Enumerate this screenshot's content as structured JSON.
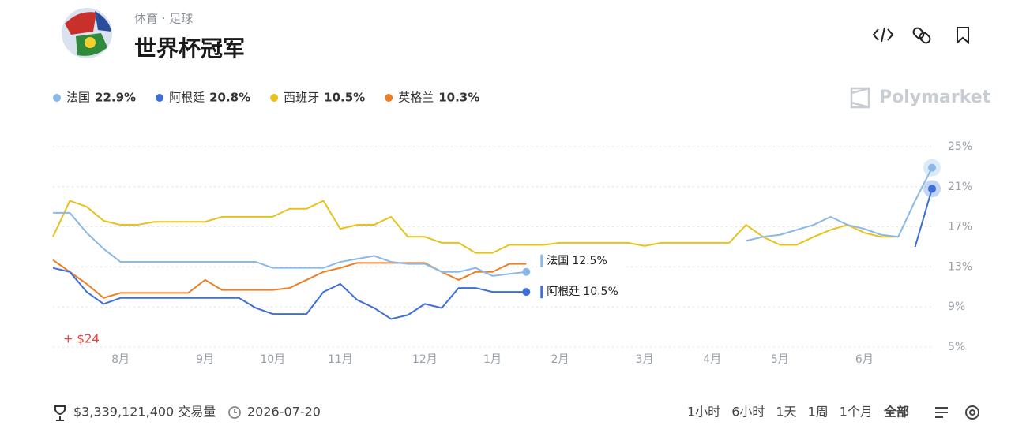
{
  "header": {
    "category": "体育 · 足球",
    "title": "世界杯冠军",
    "brand": "Polymarket"
  },
  "chart_data": {
    "type": "line",
    "categories": [
      null,
      null,
      null,
      null,
      "8月",
      null,
      null,
      null,
      null,
      "9月",
      null,
      null,
      null,
      "10月",
      null,
      null,
      null,
      "11月",
      null,
      null,
      null,
      null,
      "12月",
      null,
      null,
      null,
      "1月",
      null,
      null,
      null,
      "2月",
      null,
      null,
      null,
      null,
      "3月",
      null,
      null,
      null,
      "4月",
      null,
      null,
      null,
      "5月",
      null,
      null,
      null,
      null,
      "6月",
      null,
      null,
      null,
      null
    ],
    "ylim": [
      5,
      25
    ],
    "yticks": [
      {
        "value": 5,
        "label": "5%"
      },
      {
        "value": 9,
        "label": "9%"
      },
      {
        "value": 13,
        "label": "13%"
      },
      {
        "value": 17,
        "label": "17%"
      },
      {
        "value": 21,
        "label": "21%"
      },
      {
        "value": 25,
        "label": "25%"
      }
    ],
    "grid": true,
    "annotation": "+ $24",
    "series": [
      {
        "name": "法国",
        "color": "#8ab8e8",
        "current": {
          "value": 22.9,
          "label": "22.9%"
        },
        "values": [
          18.4,
          18.4,
          16.4,
          14.8,
          13.5,
          13.5,
          13.5,
          13.5,
          13.5,
          13.5,
          13.5,
          13.5,
          13.5,
          12.9,
          12.9,
          12.9,
          12.9,
          13.5,
          13.8,
          14.1,
          13.5,
          13.3,
          13.3,
          12.5,
          12.5,
          12.9,
          12.1,
          12.3,
          12.5,
          null,
          null,
          null,
          null,
          null,
          null,
          null,
          null,
          null,
          null,
          null,
          null,
          15.6,
          16,
          16.2,
          16.7,
          17.2,
          18,
          17.2,
          16.8,
          16.2,
          16,
          19.6,
          22.9
        ],
        "value_labels": [
          null,
          null,
          null,
          null,
          null,
          null,
          null,
          null,
          null,
          null,
          null,
          null,
          null,
          null,
          null,
          null,
          null,
          null,
          null,
          null,
          null,
          null,
          null,
          null,
          null,
          null,
          null,
          null,
          "12.5%",
          null,
          null,
          null,
          null,
          null,
          null,
          null,
          null,
          null,
          null,
          null,
          null,
          null,
          null,
          null,
          null,
          null,
          null,
          null,
          null,
          null,
          null,
          null,
          null
        ]
      },
      {
        "name": "阿根廷",
        "color": "#3d6fd9",
        "current": {
          "value": 20.8,
          "label": "20.8%"
        },
        "values": [
          12.9,
          12.5,
          10.5,
          9.3,
          9.9,
          9.9,
          9.9,
          9.9,
          9.9,
          9.9,
          9.9,
          9.9,
          8.9,
          8.3,
          8.3,
          8.3,
          10.5,
          11.3,
          9.7,
          8.9,
          7.8,
          8.2,
          9.3,
          8.9,
          10.9,
          10.9,
          10.5,
          10.5,
          10.5,
          null,
          null,
          null,
          null,
          null,
          null,
          null,
          null,
          null,
          null,
          null,
          null,
          null,
          null,
          null,
          null,
          null,
          null,
          null,
          null,
          null,
          null,
          15,
          20.8
        ],
        "value_labels": [
          null,
          null,
          null,
          null,
          null,
          null,
          null,
          null,
          null,
          null,
          null,
          null,
          null,
          null,
          null,
          null,
          null,
          null,
          null,
          null,
          null,
          null,
          null,
          null,
          null,
          null,
          null,
          null,
          "10.5%",
          null,
          null,
          null,
          null,
          null,
          null,
          null,
          null,
          null,
          null,
          null,
          null,
          null,
          null,
          null,
          null,
          null,
          null,
          null,
          null,
          null,
          null,
          null,
          null
        ]
      },
      {
        "name": "西班牙",
        "color": "#e8c21c",
        "current": {
          "value": 10.5,
          "label": "10.5%"
        },
        "values": [
          16,
          19.6,
          19,
          17.6,
          17.2,
          17.2,
          17.5,
          17.5,
          17.5,
          17.5,
          18,
          18,
          18,
          18,
          18.8,
          18.8,
          19.6,
          16.8,
          17.2,
          17.2,
          18,
          16,
          16,
          15.4,
          15.4,
          14.4,
          14.4,
          15.2,
          15.2,
          15.2,
          15.4,
          15.4,
          15.4,
          15.4,
          15.4,
          15.1,
          15.4,
          15.4,
          15.4,
          15.4,
          15.4,
          17.2,
          16,
          15.2,
          15.2,
          16,
          16.7,
          17.2,
          16.4,
          16,
          16,
          null,
          null
        ]
      },
      {
        "name": "英格兰",
        "color": "#ea7f27",
        "current": {
          "value": 10.3,
          "label": "10.3%"
        },
        "values": [
          13.7,
          12.5,
          11.3,
          9.9,
          10.4,
          10.4,
          10.4,
          10.4,
          10.4,
          11.7,
          10.7,
          10.7,
          10.7,
          10.7,
          10.9,
          11.7,
          12.5,
          12.9,
          13.4,
          13.4,
          13.4,
          13.4,
          13.4,
          12.5,
          11.7,
          12.5,
          12.5,
          13.3,
          13.3,
          null,
          null,
          null,
          null,
          null,
          null,
          null,
          null,
          null,
          null,
          null,
          null,
          null,
          null,
          null,
          null,
          null,
          null,
          null,
          null,
          null,
          null,
          null,
          null
        ]
      }
    ]
  },
  "footer": {
    "volume": "$3,339,121,400 交易量",
    "date": "2026-07-20",
    "ranges": [
      "1小时",
      "6小时",
      "1天",
      "1周",
      "1个月",
      "全部"
    ]
  }
}
